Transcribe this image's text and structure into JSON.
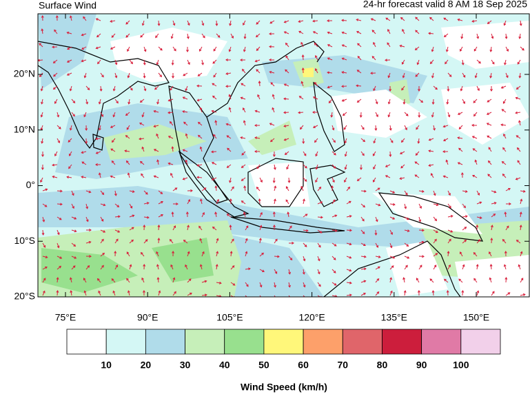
{
  "header": {
    "title": "Surface Wind",
    "subtitle": "24-hr forecast valid 8 AM 18 Sep 2025"
  },
  "map": {
    "lat_labels": [
      "20°N",
      "10°N",
      "0°",
      "10°S",
      "20°S"
    ],
    "lon_labels": [
      "75°E",
      "90°E",
      "105°E",
      "120°E",
      "135°E",
      "150°E"
    ]
  },
  "legend": {
    "colors": [
      "#ffffff",
      "#d4f7f5",
      "#b0dcea",
      "#c6efb9",
      "#98e08e",
      "#fff77a",
      "#fda06a",
      "#e0656a",
      "#cc1e3c",
      "#e07aa6",
      "#f2d0ea"
    ],
    "ticks": [
      10,
      20,
      30,
      40,
      50,
      60,
      70,
      80,
      90,
      100
    ],
    "label": "Wind Speed (km/h)"
  }
}
